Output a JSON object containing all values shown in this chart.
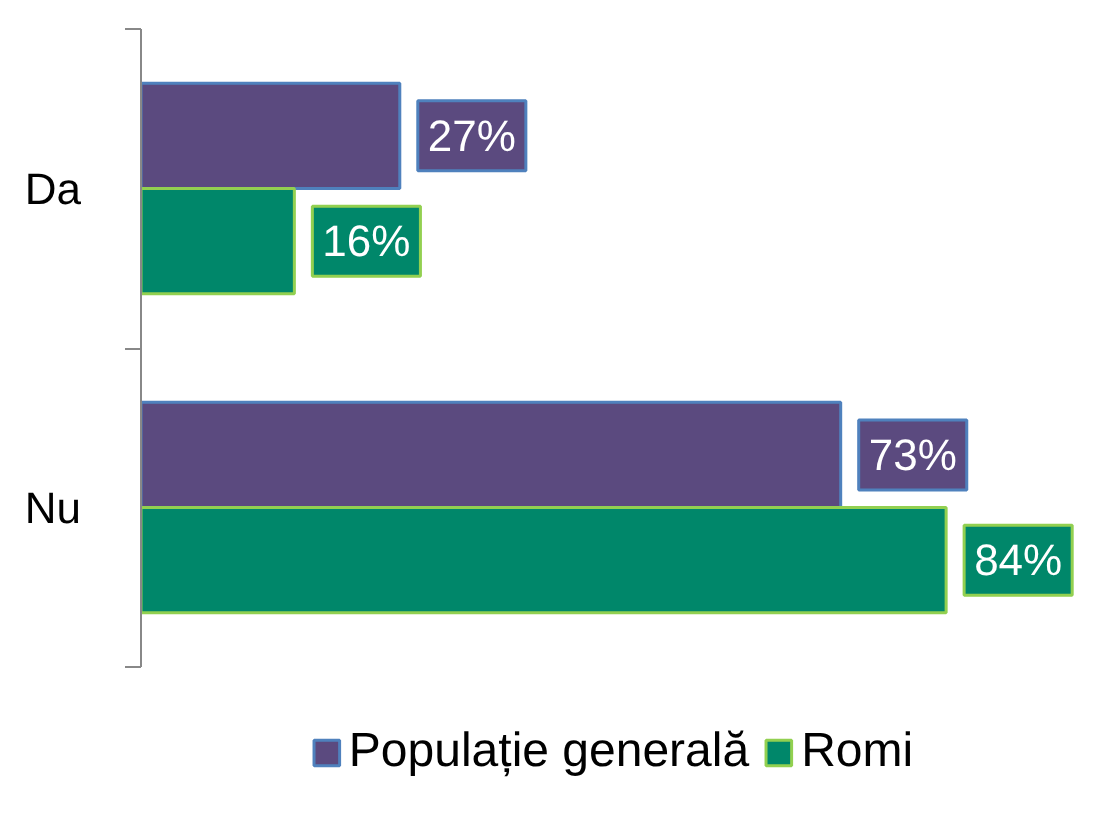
{
  "chart_data": {
    "type": "bar",
    "orientation": "horizontal",
    "categories": [
      "Da",
      "Nu"
    ],
    "series": [
      {
        "name": "Populație generală",
        "color": "#5b4a7f",
        "values": [
          27,
          73
        ],
        "value_labels": [
          "27%",
          "73%"
        ]
      },
      {
        "name": "Romi",
        "color": "#00876a",
        "values": [
          16,
          84
        ],
        "value_labels": [
          "16%",
          "84%"
        ]
      }
    ],
    "legend": "bottom"
  }
}
